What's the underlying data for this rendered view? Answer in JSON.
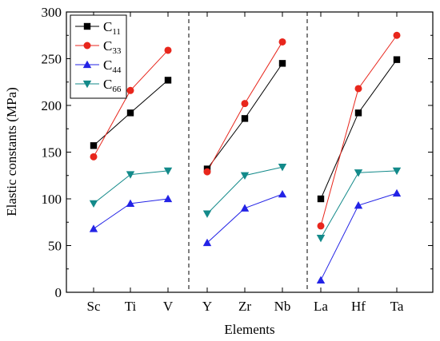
{
  "chart_data": {
    "type": "line",
    "title": "",
    "xlabel": "Elements",
    "ylabel": "Elastic constants (MPa)",
    "ylim": [
      0,
      300
    ],
    "yticks": [
      0,
      50,
      100,
      150,
      200,
      250,
      300
    ],
    "categories": [
      "Sc",
      "Ti",
      "V",
      "Y",
      "Zr",
      "Nb",
      "La",
      "Hf",
      "Ta"
    ],
    "groups": [
      [
        "Sc",
        "Ti",
        "V"
      ],
      [
        "Y",
        "Zr",
        "Nb"
      ],
      [
        "La",
        "Hf",
        "Ta"
      ]
    ],
    "grid": false,
    "legend_position": "top-left",
    "series": [
      {
        "name": "C11",
        "label_main": "C",
        "label_sub": "11",
        "color": "#000000",
        "marker": "square",
        "values": [
          157,
          192,
          227,
          132,
          186,
          245,
          100,
          192,
          249
        ]
      },
      {
        "name": "C33",
        "label_main": "C",
        "label_sub": "33",
        "color": "#e8261c",
        "marker": "circle",
        "values": [
          145,
          216,
          259,
          129,
          202,
          268,
          71,
          218,
          275
        ]
      },
      {
        "name": "C44",
        "label_main": "C",
        "label_sub": "44",
        "color": "#2323e6",
        "marker": "triangle-up",
        "values": [
          68,
          95,
          100,
          53,
          90,
          105,
          13,
          93,
          106
        ]
      },
      {
        "name": "C66",
        "label_main": "C",
        "label_sub": "66",
        "color": "#138a8a",
        "marker": "triangle-down",
        "values": [
          95,
          126,
          130,
          84,
          125,
          134,
          58,
          128,
          130
        ]
      }
    ]
  }
}
